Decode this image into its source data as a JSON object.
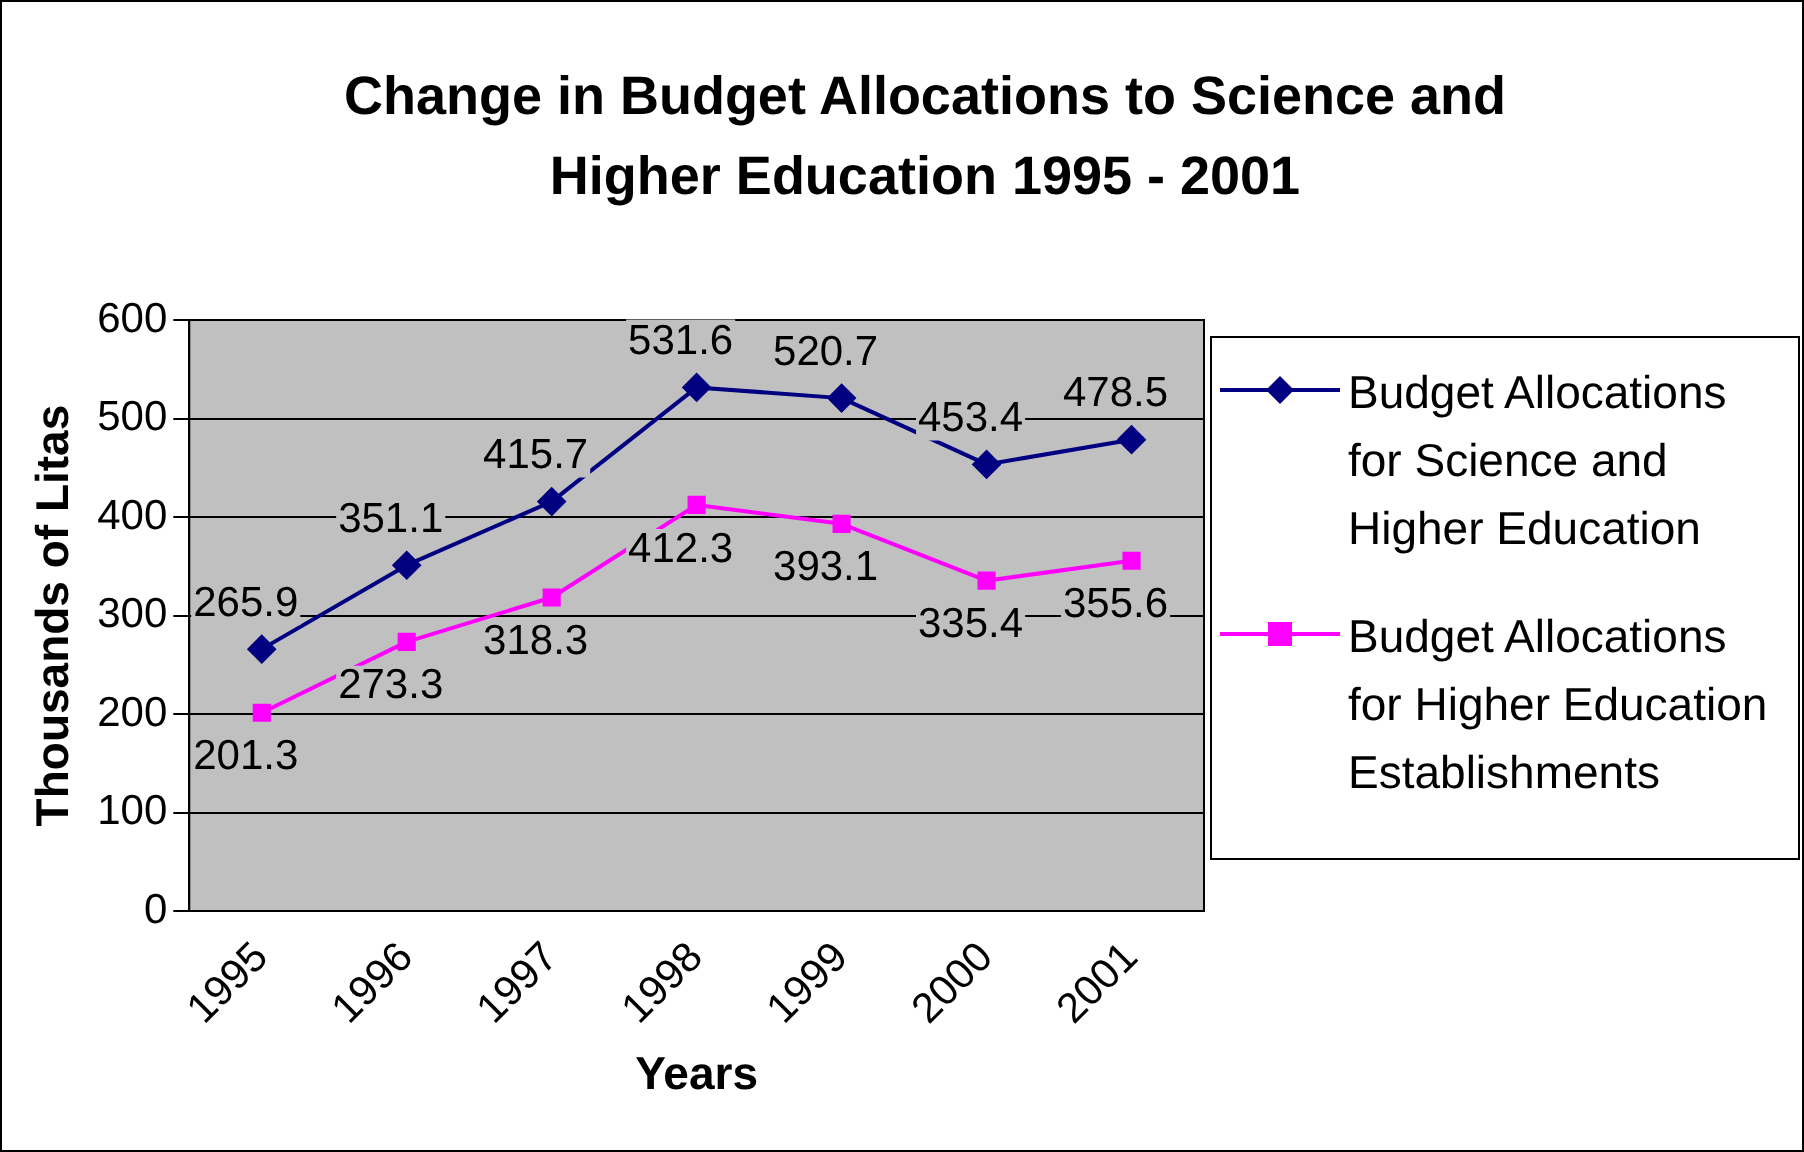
{
  "chart_data": {
    "type": "line",
    "title": "Change in Budget Allocations to Science and Higher Education 1995 - 2001",
    "xlabel": "Years",
    "ylabel": "Thousands of Litas",
    "categories": [
      "1995",
      "1996",
      "1997",
      "1998",
      "1999",
      "2000",
      "2001"
    ],
    "series": [
      {
        "name": "Budget Allocations for Science and Higher Education",
        "color": "#000080",
        "marker": "diamond",
        "values": [
          265.9,
          351.1,
          415.7,
          531.6,
          520.7,
          453.4,
          478.5
        ]
      },
      {
        "name": "Budget Allocations for Higher Education Establishments",
        "color": "#ff00ff",
        "marker": "square",
        "values": [
          201.3,
          273.3,
          318.3,
          412.3,
          393.1,
          335.4,
          355.6
        ]
      }
    ],
    "ylim": [
      0,
      600
    ],
    "yticks": [
      0,
      100,
      200,
      300,
      400,
      500,
      600
    ],
    "grid": "y",
    "legend": "right",
    "data_labels": true,
    "line_style": "solid"
  }
}
